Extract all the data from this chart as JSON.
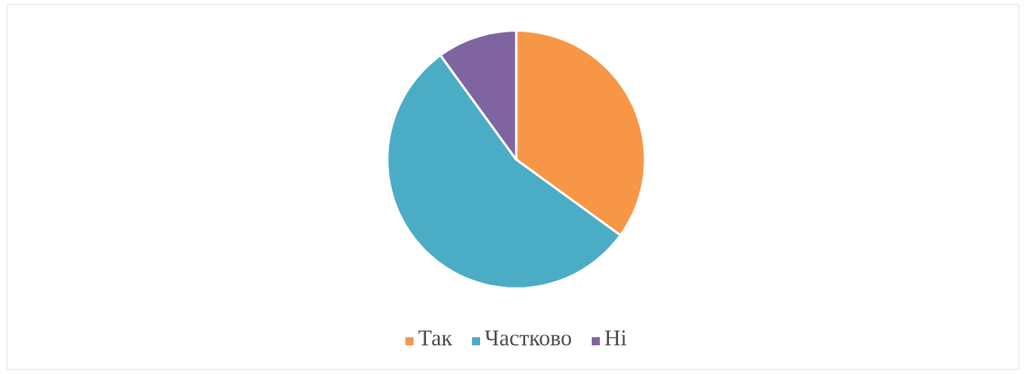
{
  "chart_data": {
    "type": "pie",
    "categories": [
      "Так",
      "Частково",
      "Ні"
    ],
    "values": [
      35,
      55,
      10
    ],
    "colors": [
      "#f79646",
      "#4bacc6",
      "#8064a2"
    ],
    "legend": "bottom"
  }
}
